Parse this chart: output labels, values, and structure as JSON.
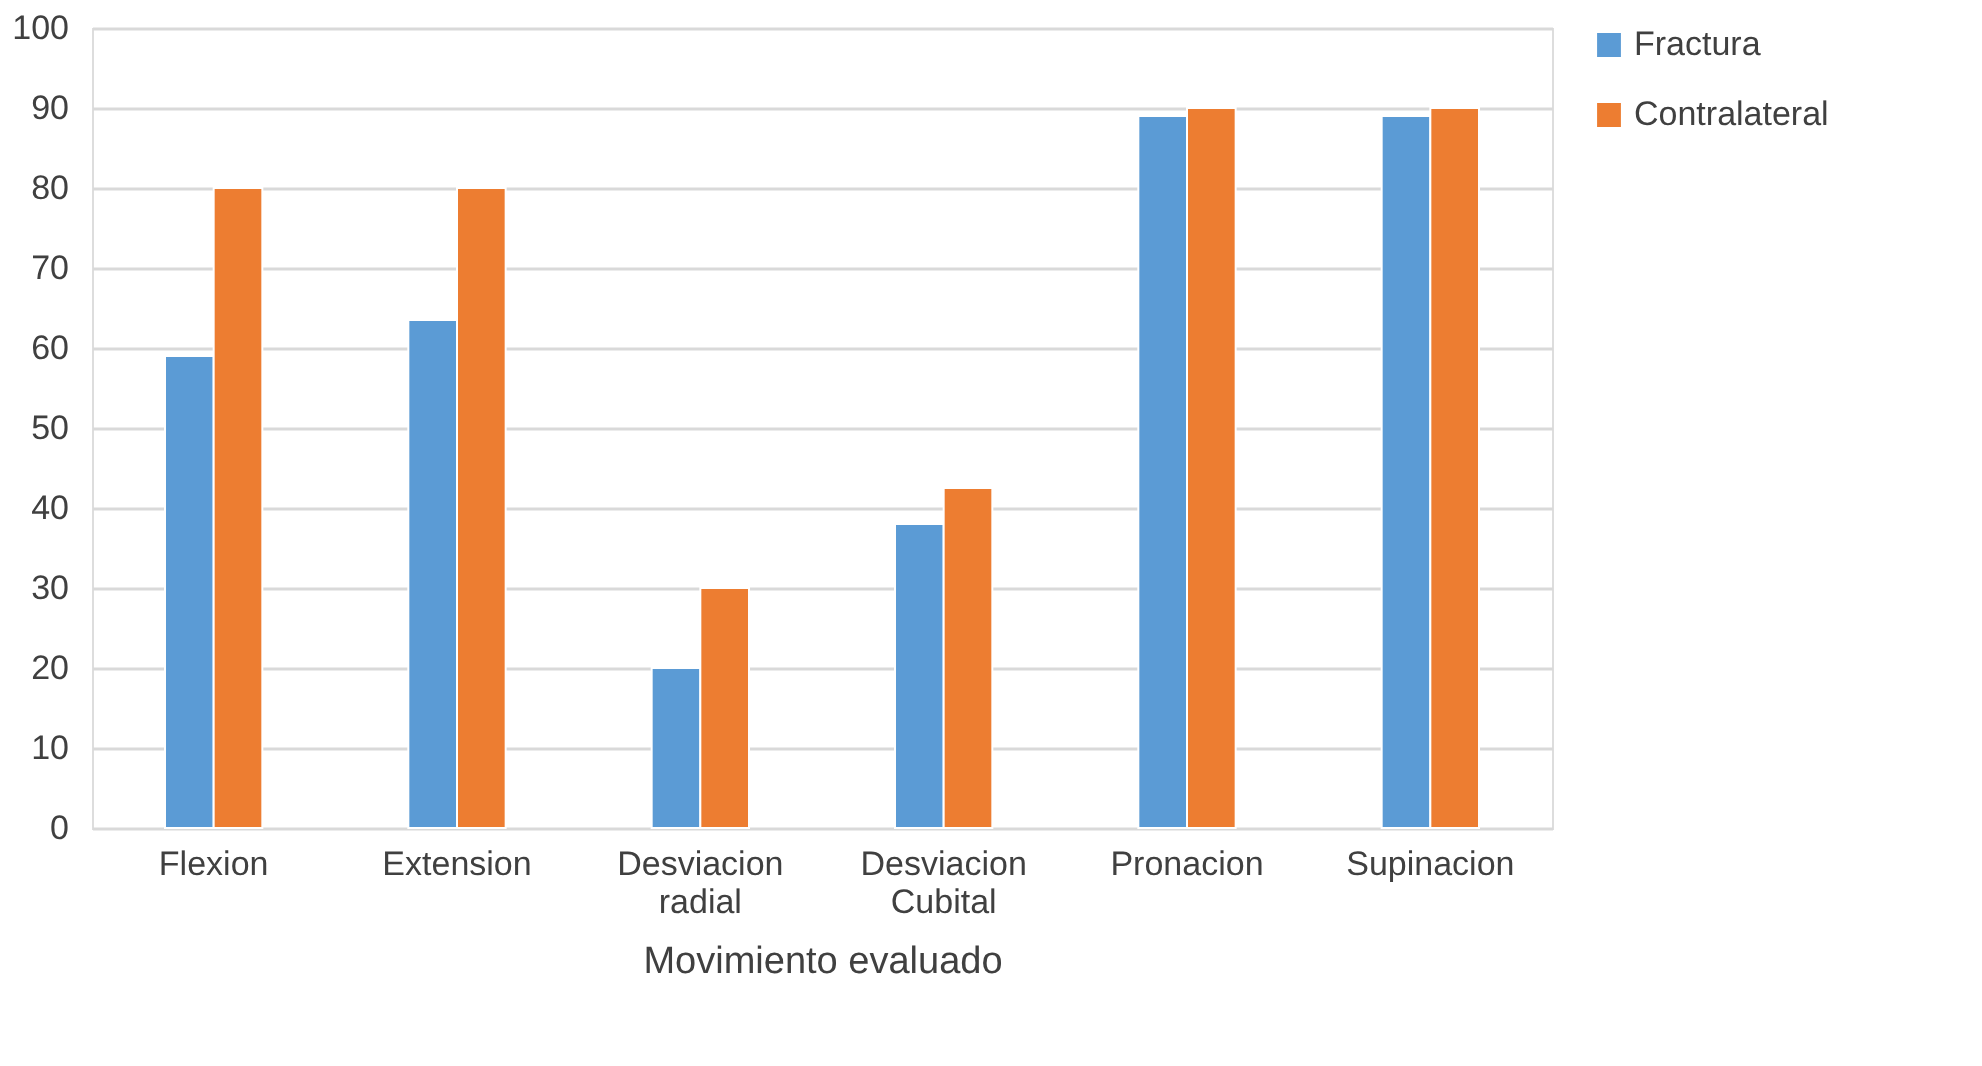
{
  "chart_data": {
    "type": "bar",
    "xlabel": "Movimiento evaluado",
    "categories": [
      "Flexion",
      "Extension",
      "Desviacion radial",
      "Desviacion Cubital",
      "Pronacion",
      "Supinacion"
    ],
    "series": [
      {
        "name": "Fractura",
        "color": "#5b9bd5",
        "values": [
          59,
          63.5,
          20,
          38,
          89,
          89
        ]
      },
      {
        "name": "Contralateral",
        "color": "#ed7d31",
        "values": [
          80,
          80,
          30,
          42.5,
          90,
          90
        ]
      }
    ],
    "ylim": [
      0,
      100
    ],
    "yticks": [
      0,
      10,
      20,
      30,
      40,
      50,
      60,
      70,
      80,
      90,
      100
    ],
    "grid": "y",
    "legend": "right"
  }
}
